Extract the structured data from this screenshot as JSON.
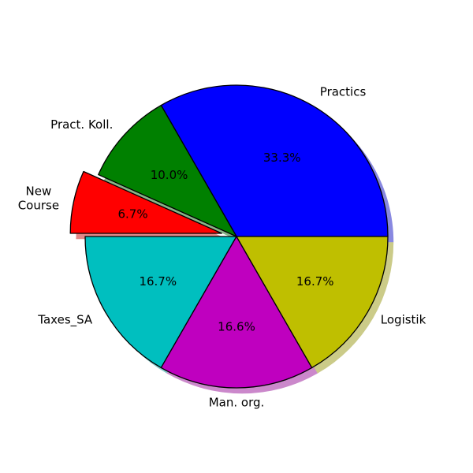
{
  "chart_data": {
    "type": "pie",
    "title": "",
    "start_angle_deg": 0,
    "direction": "counterclockwise",
    "shadow": true,
    "edge_color": "#000000",
    "slices": [
      {
        "label": "Practics",
        "label_lines": [
          "Practics"
        ],
        "value": 33.3,
        "pct_label": "33.3%",
        "color": "#0000ff",
        "explode": 0
      },
      {
        "label": "Pract. Koll.",
        "label_lines": [
          "Pract. Koll."
        ],
        "value": 10.0,
        "pct_label": "10.0%",
        "color": "#008000",
        "explode": 0
      },
      {
        "label": "New Course",
        "label_lines": [
          "New",
          "Course"
        ],
        "value": 6.7,
        "pct_label": "6.7%",
        "color": "#ff0000",
        "explode": 0.1
      },
      {
        "label": "Taxes_SA",
        "label_lines": [
          "Taxes_SA"
        ],
        "value": 16.7,
        "pct_label": "16.7%",
        "color": "#00bfbf",
        "explode": 0
      },
      {
        "label": "Man. org.",
        "label_lines": [
          "Man. org."
        ],
        "value": 16.6,
        "pct_label": "16.6%",
        "color": "#bf00bf",
        "explode": 0
      },
      {
        "label": "Logistik",
        "label_lines": [
          "Logistik"
        ],
        "value": 16.7,
        "pct_label": "16.7%",
        "color": "#bfbf00",
        "explode": 0
      }
    ]
  }
}
